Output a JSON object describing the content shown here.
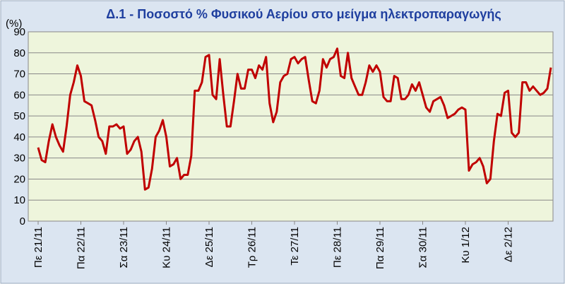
{
  "chart_data": {
    "type": "line",
    "title": "Δ.1 - Ποσοστό % Φυσικού Αερίου στο μείγμα ηλεκτροπαραγωγής",
    "y_label": "(%)",
    "categories": [
      "Πε 21/11",
      null,
      null,
      null,
      null,
      null,
      null,
      null,
      null,
      null,
      null,
      null,
      "Πα 22/11",
      null,
      null,
      null,
      null,
      null,
      null,
      null,
      null,
      null,
      null,
      null,
      "Σα 23/11",
      null,
      null,
      null,
      null,
      null,
      null,
      null,
      null,
      null,
      null,
      null,
      "Κυ 24/11",
      null,
      null,
      null,
      null,
      null,
      null,
      null,
      null,
      null,
      null,
      null,
      "Δε 25/11",
      null,
      null,
      null,
      null,
      null,
      null,
      null,
      null,
      null,
      null,
      null,
      "Τρ 26/11",
      null,
      null,
      null,
      null,
      null,
      null,
      null,
      null,
      null,
      null,
      null,
      "Τε 27/11",
      null,
      null,
      null,
      null,
      null,
      null,
      null,
      null,
      null,
      null,
      null,
      "Πε 28/11",
      null,
      null,
      null,
      null,
      null,
      null,
      null,
      null,
      null,
      null,
      null,
      "Πα 29/11",
      null,
      null,
      null,
      null,
      null,
      null,
      null,
      null,
      null,
      null,
      null,
      "Σα 30/11",
      null,
      null,
      null,
      null,
      null,
      null,
      null,
      null,
      null,
      null,
      null,
      "Κυ 1/12",
      null,
      null,
      null,
      null,
      null,
      null,
      null,
      null,
      null,
      null,
      null,
      "Δε 2/12",
      null,
      null,
      null,
      null,
      null,
      null,
      null,
      null,
      null,
      null,
      null,
      null
    ],
    "series": [
      {
        "name": "Φυσικό Αέριο",
        "color": "#c00000",
        "values": [
          35,
          29,
          28,
          38,
          46,
          40,
          36,
          33,
          45,
          60,
          66,
          74,
          69,
          57,
          56,
          55,
          48,
          40,
          38,
          32,
          45,
          45,
          46,
          44,
          45,
          32,
          34,
          38,
          40,
          33,
          15,
          16,
          25,
          40,
          43,
          48,
          40,
          26,
          27,
          30,
          20,
          22,
          22,
          31,
          62,
          62,
          66,
          78,
          79,
          60,
          58,
          77,
          60,
          45,
          45,
          57,
          70,
          63,
          63,
          72,
          72,
          68,
          74,
          72,
          78,
          56,
          47,
          52,
          66,
          69,
          70,
          77,
          78,
          75,
          77,
          78,
          67,
          57,
          56,
          62,
          77,
          73,
          77,
          78,
          82,
          69,
          68,
          80,
          68,
          64,
          60,
          60,
          66,
          74,
          71,
          74,
          71,
          59,
          57,
          57,
          69,
          68,
          58,
          58,
          60,
          65,
          62,
          66,
          60,
          54,
          52,
          57,
          58,
          59,
          55,
          49,
          50,
          51,
          53,
          54,
          53,
          24,
          27,
          28,
          30,
          26,
          18,
          20,
          38,
          51,
          50,
          61,
          62,
          42,
          40,
          42,
          66,
          66,
          62,
          64,
          62,
          60,
          61,
          63,
          73
        ]
      }
    ],
    "ylim": [
      0,
      90
    ],
    "yticks": [
      0,
      10,
      20,
      30,
      40,
      50,
      60,
      70,
      80,
      90
    ],
    "grid": true
  }
}
